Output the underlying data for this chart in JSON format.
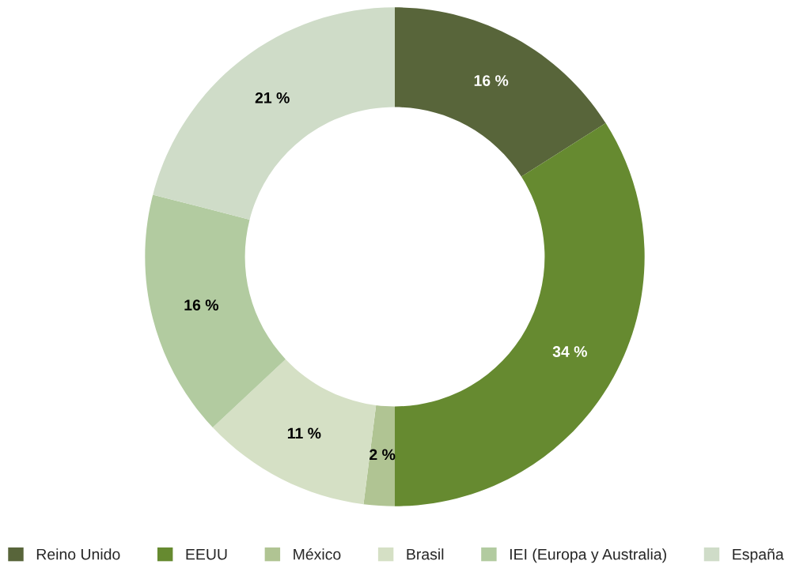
{
  "chart_data": {
    "type": "donut",
    "categories": [
      "Reino Unido",
      "EEUU",
      "México",
      "Brasil",
      "IEI (Europa y Australia)",
      "España"
    ],
    "values": [
      16,
      34,
      2,
      11,
      16,
      21
    ],
    "value_labels": [
      "16 %",
      "34 %",
      "2 %",
      "11 %",
      "16 %",
      "21 %"
    ],
    "colors": [
      "#58653a",
      "#668a30",
      "#b0c493",
      "#d5e0c5",
      "#b2cba0",
      "#cfdcc8"
    ],
    "legend": "bottom"
  }
}
